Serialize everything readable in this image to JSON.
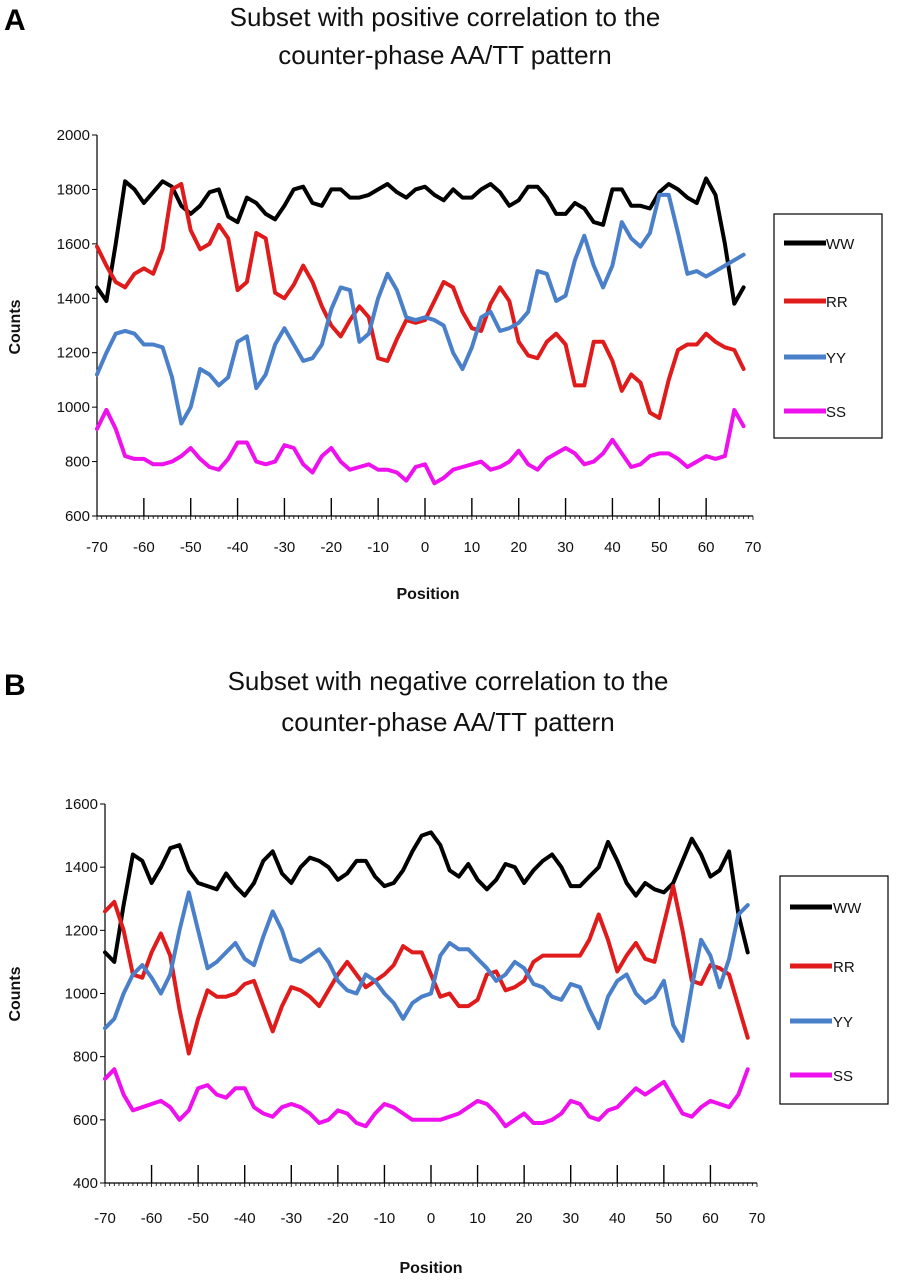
{
  "chart_data": [
    {
      "panel": "A",
      "type": "line",
      "title_lines": [
        "Subset with positive correlation to the",
        "counter-phase AA/TT pattern"
      ],
      "xlabel": "Position",
      "ylabel": "Counts",
      "xlim": [
        -70,
        70
      ],
      "ylim": [
        600,
        2000
      ],
      "xticks": [
        -70,
        -60,
        -50,
        -40,
        -30,
        -20,
        -10,
        0,
        10,
        20,
        30,
        40,
        50,
        60,
        70
      ],
      "yticks": [
        600,
        800,
        1000,
        1200,
        1400,
        1600,
        1800,
        2000
      ],
      "x": [
        -70,
        -68,
        -66,
        -64,
        -62,
        -60,
        -58,
        -56,
        -54,
        -52,
        -50,
        -48,
        -46,
        -44,
        -42,
        -40,
        -38,
        -36,
        -34,
        -32,
        -30,
        -28,
        -26,
        -24,
        -22,
        -20,
        -18,
        -16,
        -14,
        -12,
        -10,
        -8,
        -6,
        -4,
        -2,
        0,
        2,
        4,
        6,
        8,
        10,
        12,
        14,
        16,
        18,
        20,
        22,
        24,
        26,
        28,
        30,
        32,
        34,
        36,
        38,
        40,
        42,
        44,
        46,
        48,
        50,
        52,
        54,
        56,
        58,
        60,
        62,
        64,
        66,
        68
      ],
      "series": [
        {
          "name": "WW",
          "color": "#000000",
          "values": [
            1440,
            1390,
            1600,
            1830,
            1800,
            1750,
            1790,
            1830,
            1810,
            1740,
            1710,
            1740,
            1790,
            1800,
            1700,
            1680,
            1770,
            1750,
            1710,
            1690,
            1740,
            1800,
            1810,
            1750,
            1740,
            1800,
            1800,
            1770,
            1770,
            1780,
            1800,
            1820,
            1790,
            1770,
            1800,
            1810,
            1780,
            1760,
            1800,
            1770,
            1770,
            1800,
            1820,
            1790,
            1740,
            1760,
            1810,
            1810,
            1770,
            1710,
            1710,
            1750,
            1730,
            1680,
            1670,
            1800,
            1800,
            1740,
            1740,
            1730,
            1790,
            1820,
            1800,
            1770,
            1750,
            1840,
            1780,
            1600,
            1380,
            1440
          ]
        },
        {
          "name": "RR",
          "color": "#e01b1b",
          "values": [
            1590,
            1520,
            1460,
            1440,
            1490,
            1510,
            1490,
            1580,
            1800,
            1820,
            1650,
            1580,
            1600,
            1670,
            1620,
            1430,
            1460,
            1640,
            1620,
            1420,
            1400,
            1450,
            1520,
            1460,
            1370,
            1300,
            1260,
            1320,
            1370,
            1330,
            1180,
            1170,
            1250,
            1320,
            1310,
            1320,
            1390,
            1460,
            1440,
            1350,
            1290,
            1280,
            1380,
            1440,
            1390,
            1240,
            1190,
            1180,
            1240,
            1270,
            1230,
            1080,
            1080,
            1240,
            1240,
            1170,
            1060,
            1120,
            1090,
            980,
            960,
            1100,
            1210,
            1230,
            1230,
            1270,
            1240,
            1220,
            1210,
            1140
          ]
        },
        {
          "name": "YY",
          "color": "#4a7fc9",
          "values": [
            1120,
            1200,
            1270,
            1280,
            1270,
            1230,
            1230,
            1220,
            1110,
            940,
            1000,
            1140,
            1120,
            1080,
            1110,
            1240,
            1260,
            1070,
            1120,
            1230,
            1290,
            1230,
            1170,
            1180,
            1230,
            1360,
            1440,
            1430,
            1240,
            1270,
            1400,
            1490,
            1430,
            1330,
            1320,
            1330,
            1320,
            1300,
            1200,
            1140,
            1220,
            1330,
            1350,
            1280,
            1290,
            1310,
            1350,
            1500,
            1490,
            1390,
            1410,
            1540,
            1630,
            1520,
            1440,
            1520,
            1680,
            1620,
            1590,
            1640,
            1780,
            1780,
            1640,
            1490,
            1500,
            1480,
            1500,
            1520,
            1540,
            1560
          ]
        },
        {
          "name": "SS",
          "color": "#ee11ee",
          "values": [
            920,
            990,
            920,
            820,
            810,
            810,
            790,
            790,
            800,
            820,
            850,
            810,
            780,
            770,
            810,
            870,
            870,
            800,
            790,
            800,
            860,
            850,
            790,
            760,
            820,
            850,
            800,
            770,
            780,
            790,
            770,
            770,
            760,
            730,
            780,
            790,
            720,
            740,
            770,
            780,
            790,
            800,
            770,
            780,
            800,
            840,
            790,
            770,
            810,
            830,
            850,
            830,
            790,
            800,
            830,
            880,
            830,
            780,
            790,
            820,
            830,
            830,
            810,
            780,
            800,
            820,
            810,
            820,
            990,
            930
          ]
        }
      ]
    },
    {
      "panel": "B",
      "type": "line",
      "title_lines": [
        "Subset with negative correlation to the",
        "counter-phase AA/TT pattern"
      ],
      "xlabel": "Position",
      "ylabel": "Counts",
      "xlim": [
        -70,
        70
      ],
      "ylim": [
        400,
        1600
      ],
      "xticks": [
        -70,
        -60,
        -50,
        -40,
        -30,
        -20,
        -10,
        0,
        10,
        20,
        30,
        40,
        50,
        60,
        70
      ],
      "yticks": [
        400,
        600,
        800,
        1000,
        1200,
        1400,
        1600
      ],
      "x": [
        -70,
        -68,
        -66,
        -64,
        -62,
        -60,
        -58,
        -56,
        -54,
        -52,
        -50,
        -48,
        -46,
        -44,
        -42,
        -40,
        -38,
        -36,
        -34,
        -32,
        -30,
        -28,
        -26,
        -24,
        -22,
        -20,
        -18,
        -16,
        -14,
        -12,
        -10,
        -8,
        -6,
        -4,
        -2,
        0,
        2,
        4,
        6,
        8,
        10,
        12,
        14,
        16,
        18,
        20,
        22,
        24,
        26,
        28,
        30,
        32,
        34,
        36,
        38,
        40,
        42,
        44,
        46,
        48,
        50,
        52,
        54,
        56,
        58,
        60,
        62,
        64,
        66,
        68
      ],
      "series": [
        {
          "name": "WW",
          "color": "#000000",
          "values": [
            1130,
            1100,
            1280,
            1440,
            1420,
            1350,
            1400,
            1460,
            1470,
            1390,
            1350,
            1340,
            1330,
            1380,
            1340,
            1310,
            1350,
            1420,
            1450,
            1380,
            1350,
            1400,
            1430,
            1420,
            1400,
            1360,
            1380,
            1420,
            1420,
            1370,
            1340,
            1350,
            1390,
            1450,
            1500,
            1510,
            1470,
            1390,
            1370,
            1410,
            1360,
            1330,
            1360,
            1410,
            1400,
            1350,
            1390,
            1420,
            1440,
            1400,
            1340,
            1340,
            1370,
            1400,
            1480,
            1420,
            1350,
            1310,
            1350,
            1330,
            1320,
            1350,
            1420,
            1490,
            1440,
            1370,
            1390,
            1450,
            1250,
            1130
          ]
        },
        {
          "name": "RR",
          "color": "#e01b1b",
          "values": [
            1260,
            1290,
            1200,
            1060,
            1050,
            1130,
            1190,
            1120,
            950,
            810,
            920,
            1010,
            990,
            990,
            1000,
            1030,
            1040,
            960,
            880,
            960,
            1020,
            1010,
            990,
            960,
            1010,
            1060,
            1100,
            1060,
            1020,
            1040,
            1060,
            1090,
            1150,
            1130,
            1130,
            1060,
            990,
            1000,
            960,
            960,
            980,
            1060,
            1070,
            1010,
            1020,
            1040,
            1100,
            1120,
            1120,
            1120,
            1120,
            1120,
            1170,
            1250,
            1170,
            1070,
            1120,
            1160,
            1110,
            1100,
            1220,
            1340,
            1200,
            1040,
            1030,
            1090,
            1080,
            1060,
            960,
            860
          ]
        },
        {
          "name": "YY",
          "color": "#4a7fc9",
          "values": [
            890,
            920,
            1000,
            1060,
            1090,
            1050,
            1000,
            1060,
            1200,
            1320,
            1200,
            1080,
            1100,
            1130,
            1160,
            1110,
            1090,
            1180,
            1260,
            1200,
            1110,
            1100,
            1120,
            1140,
            1100,
            1040,
            1010,
            1000,
            1060,
            1040,
            1000,
            970,
            920,
            970,
            990,
            1000,
            1120,
            1160,
            1140,
            1140,
            1110,
            1080,
            1040,
            1060,
            1100,
            1080,
            1030,
            1020,
            990,
            980,
            1030,
            1020,
            950,
            890,
            990,
            1040,
            1060,
            1000,
            970,
            990,
            1040,
            900,
            850,
            1020,
            1170,
            1120,
            1020,
            1110,
            1250,
            1280
          ]
        },
        {
          "name": "SS",
          "color": "#ee11ee",
          "values": [
            730,
            760,
            680,
            630,
            640,
            650,
            660,
            640,
            600,
            630,
            700,
            710,
            680,
            670,
            700,
            700,
            640,
            620,
            610,
            640,
            650,
            640,
            620,
            590,
            600,
            630,
            620,
            590,
            580,
            620,
            650,
            640,
            620,
            600,
            600,
            600,
            600,
            610,
            620,
            640,
            660,
            650,
            620,
            580,
            600,
            620,
            590,
            590,
            600,
            620,
            660,
            650,
            610,
            600,
            630,
            640,
            670,
            700,
            680,
            700,
            720,
            670,
            620,
            610,
            640,
            660,
            650,
            640,
            680,
            760
          ]
        }
      ]
    }
  ]
}
